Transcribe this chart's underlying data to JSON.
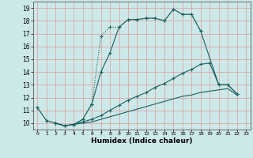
{
  "xlabel": "Humidex (Indice chaleur)",
  "bg_color": "#cde8e8",
  "grid_color": "#dba8a8",
  "line_color": "#1a6060",
  "xlim": [
    -0.5,
    23.5
  ],
  "ylim": [
    9.5,
    19.5
  ],
  "xticks": [
    0,
    1,
    2,
    3,
    4,
    5,
    6,
    7,
    8,
    9,
    10,
    11,
    12,
    13,
    14,
    15,
    16,
    17,
    18,
    19,
    20,
    21,
    22,
    23
  ],
  "yticks": [
    10,
    11,
    12,
    13,
    14,
    15,
    16,
    17,
    18,
    19
  ],
  "curve1_x": [
    0,
    1,
    2,
    3,
    4,
    5,
    6,
    7,
    8,
    9,
    10,
    11,
    12,
    13,
    14,
    15,
    16,
    17,
    18
  ],
  "curve1_y": [
    11.2,
    10.2,
    10.0,
    9.8,
    9.9,
    10.3,
    11.5,
    16.8,
    17.5,
    17.5,
    18.1,
    18.1,
    18.2,
    18.2,
    18.0,
    18.9,
    18.5,
    18.5,
    17.2
  ],
  "curve1_style": "dotted",
  "curve2_x": [
    0,
    1,
    2,
    3,
    4,
    5,
    6,
    7,
    8,
    9,
    10,
    11,
    12,
    13,
    14,
    15,
    16,
    17,
    18,
    20,
    21,
    22
  ],
  "curve2_y": [
    11.2,
    10.2,
    10.0,
    9.8,
    9.9,
    10.3,
    11.5,
    14.0,
    15.5,
    17.5,
    18.1,
    18.1,
    18.2,
    18.2,
    18.0,
    18.9,
    18.5,
    18.5,
    17.2,
    13.0,
    13.0,
    12.3
  ],
  "curve2_style": "solid",
  "curve3_x": [
    2,
    3,
    4,
    5,
    6,
    7,
    8,
    9,
    10,
    11,
    12,
    13,
    14,
    15,
    16,
    17,
    18,
    19,
    20,
    21,
    22
  ],
  "curve3_y": [
    10.0,
    9.8,
    9.9,
    10.1,
    10.3,
    10.6,
    11.0,
    11.4,
    11.8,
    12.1,
    12.4,
    12.8,
    13.1,
    13.5,
    13.9,
    14.2,
    14.6,
    14.7,
    13.0,
    13.0,
    12.3
  ],
  "curve3_style": "solid",
  "curve4_x": [
    2,
    3,
    4,
    5,
    6,
    7,
    8,
    9,
    10,
    11,
    12,
    13,
    14,
    15,
    16,
    17,
    18,
    19,
    20,
    21,
    22
  ],
  "curve4_y": [
    10.0,
    9.8,
    9.9,
    10.0,
    10.1,
    10.3,
    10.5,
    10.7,
    10.9,
    11.1,
    11.3,
    11.5,
    11.7,
    11.9,
    12.1,
    12.2,
    12.4,
    12.5,
    12.6,
    12.7,
    12.2
  ],
  "curve4_style": "solid"
}
